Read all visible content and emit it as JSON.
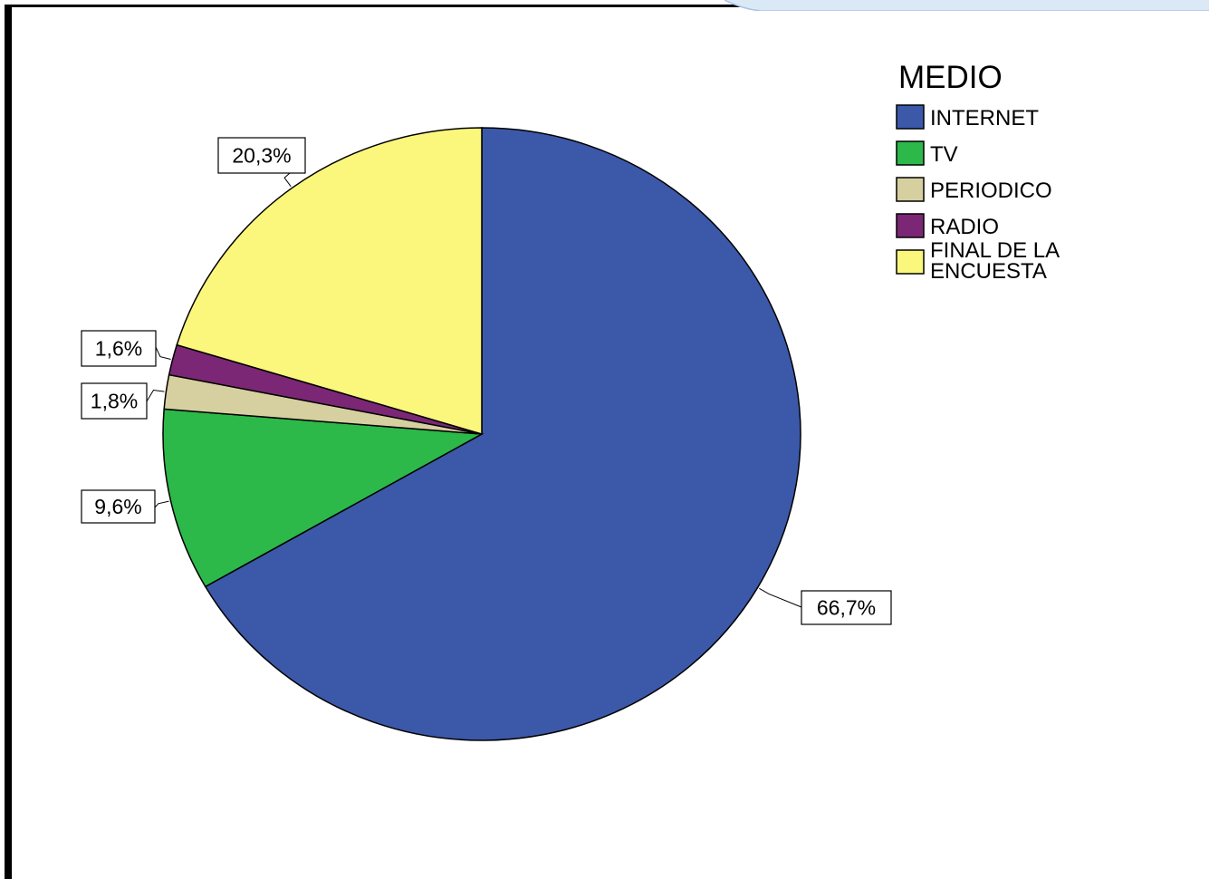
{
  "chart_data": {
    "type": "pie",
    "legend_title": "MEDIO",
    "legend_position": "top-right",
    "slices": [
      {
        "name": "INTERNET",
        "value": 66.7,
        "label": "66,7%",
        "color": "#3c58a9"
      },
      {
        "name": "TV",
        "value": 9.6,
        "label": "9,6%",
        "color": "#2db84a"
      },
      {
        "name": "PERIODICO",
        "value": 1.8,
        "label": "1,8%",
        "color": "#d6cfa0"
      },
      {
        "name": "RADIO",
        "value": 1.6,
        "label": "1,6%",
        "color": "#7b2775"
      },
      {
        "name": "FINAL DE LA ENCUESTA",
        "value": 20.3,
        "label": "20,3%",
        "color": "#fbf77d",
        "legend_lines": [
          "FINAL DE LA",
          "ENCUESTA"
        ]
      }
    ],
    "start": "12 o'clock",
    "direction": "clockwise"
  }
}
